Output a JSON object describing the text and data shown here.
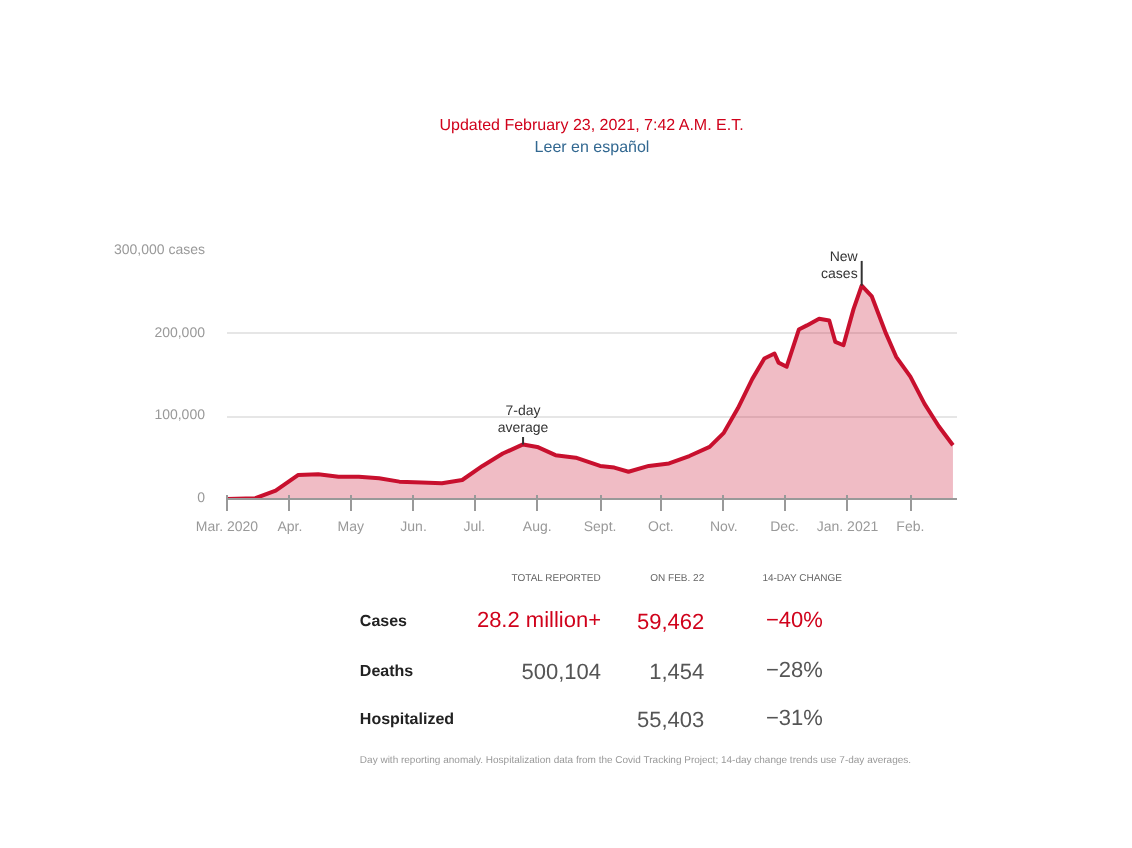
{
  "chart_data": {
    "type": "area",
    "title": "Updated February 23, 2021, 7:42 A.M. E.T.",
    "subtitle": "Leer en español",
    "x": [
      "2020-03-01",
      "2020-03-15",
      "2020-03-25",
      "2020-04-05",
      "2020-04-15",
      "2020-04-25",
      "2020-05-05",
      "2020-05-15",
      "2020-05-25",
      "2020-06-05",
      "2020-06-15",
      "2020-06-25",
      "2020-07-05",
      "2020-07-15",
      "2020-07-25",
      "2020-08-01",
      "2020-08-10",
      "2020-08-20",
      "2020-09-01",
      "2020-09-08",
      "2020-09-15",
      "2020-09-25",
      "2020-10-05",
      "2020-10-15",
      "2020-10-25",
      "2020-11-01",
      "2020-11-08",
      "2020-11-15",
      "2020-11-21",
      "2020-11-26",
      "2020-11-28",
      "2020-12-02",
      "2020-12-08",
      "2020-12-12",
      "2020-12-18",
      "2020-12-23",
      "2020-12-26",
      "2020-12-30",
      "2021-01-04",
      "2021-01-08",
      "2021-01-13",
      "2021-01-20",
      "2021-01-25",
      "2021-02-01",
      "2021-02-08",
      "2021-02-15",
      "2021-02-22"
    ],
    "series": [
      {
        "color": "#c8102e",
        "values": [
          0,
          1000,
          10000,
          29000,
          30000,
          27000,
          27000,
          25000,
          21000,
          20000,
          19000,
          23000,
          40000,
          55000,
          66000,
          63000,
          53000,
          50000,
          40000,
          38000,
          33000,
          40000,
          43000,
          52000,
          63000,
          80000,
          110000,
          145000,
          170000,
          176000,
          165000,
          160000,
          205000,
          210000,
          218000,
          216000,
          190000,
          186000,
          230000,
          258000,
          245000,
          200000,
          172000,
          148000,
          115000,
          88000,
          65000
        ]
      }
    ],
    "xlim": [
      "2020-03-01",
      "2021-02-24"
    ],
    "xticks": [
      {
        "value": "2020-03-01",
        "label": "Mar. 2020"
      },
      {
        "value": "2020-04-01",
        "label": "Apr."
      },
      {
        "value": "2020-05-01",
        "label": "May"
      },
      {
        "value": "2020-06-01",
        "label": "Jun."
      },
      {
        "value": "2020-07-01",
        "label": "Jul."
      },
      {
        "value": "2020-08-01",
        "label": "Aug."
      },
      {
        "value": "2020-09-01",
        "label": "Sept."
      },
      {
        "value": "2020-10-01",
        "label": "Oct."
      },
      {
        "value": "2020-11-01",
        "label": "Nov."
      },
      {
        "value": "2020-12-01",
        "label": "Dec."
      },
      {
        "value": "2021-01-01",
        "label": "Jan. 2021"
      },
      {
        "value": "2021-02-01",
        "label": "Feb."
      }
    ],
    "ylim": [
      0,
      300000
    ],
    "yticks": [
      0,
      {
        "value": 100000,
        "label": "100,000"
      },
      {
        "value": 200000,
        "label": "200,000"
      },
      {
        "value": 300000,
        "label": "300,000 cases"
      }
    ],
    "grid": "y",
    "annotations": [
      {
        "text": "7-day average",
        "x": "2020-07-25",
        "y": 66000
      },
      {
        "text": "New cases",
        "x": "2021-01-08",
        "y": 258000
      },
      "TOTAL REPORTED",
      "ON FEB. 22",
      "14-DAY CHANGE",
      "Cases",
      "28.2 million+",
      "59,462",
      "−40%",
      "Deaths",
      "500,104",
      "1,454",
      "−28%",
      "Hospitalized",
      "55,403",
      "−31%",
      "Day with reporting anomaly. Hospitalization data from the Covid Tracking Project; 14-day change trends use 7-day averages."
    ]
  }
}
